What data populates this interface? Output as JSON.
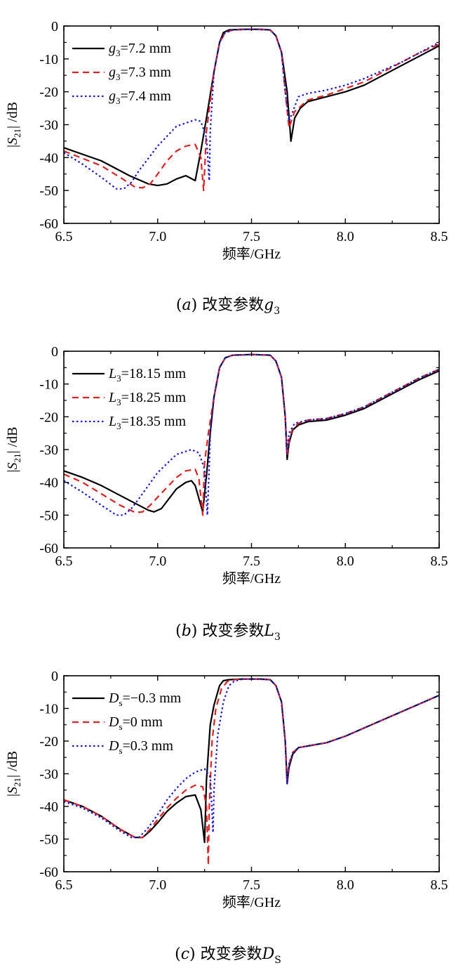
{
  "chart_data": [
    {
      "type": "line",
      "xlabel": "频率/GHz",
      "ylabel": "|S21| /dB",
      "xlim": [
        6.5,
        8.5
      ],
      "ylim": [
        -60,
        0
      ],
      "xticks": [
        "6.5",
        "7.0",
        "7.5",
        "8.0",
        "8.5"
      ],
      "yticks": [
        "0",
        "-10",
        "-20",
        "-30",
        "-40",
        "-50",
        "-60"
      ],
      "legend_position": "top-left",
      "caption": "(a) 改变参数g3",
      "series": [
        {
          "name": "g3=7.2 mm",
          "color": "#000000",
          "dash": "solid",
          "x": [
            6.5,
            6.7,
            6.85,
            6.95,
            7.0,
            7.05,
            7.1,
            7.15,
            7.2,
            7.23,
            7.26,
            7.3,
            7.33,
            7.35,
            7.38,
            7.45,
            7.55,
            7.6,
            7.63,
            7.66,
            7.69,
            7.71,
            7.73,
            7.76,
            7.8,
            7.9,
            8.0,
            8.1,
            8.2,
            8.3,
            8.4,
            8.5
          ],
          "y": [
            -37,
            -41,
            -45.5,
            -48,
            -48.5,
            -48,
            -46.5,
            -45.5,
            -47,
            -38,
            -28,
            -14,
            -5,
            -2,
            -1.2,
            -1,
            -1,
            -1.2,
            -3,
            -8,
            -20,
            -35,
            -28,
            -25,
            -23,
            -21.5,
            -20,
            -18,
            -15,
            -12,
            -9,
            -6
          ]
        },
        {
          "name": "g3=7.3 mm",
          "color": "#e02020",
          "dash": "dash",
          "x": [
            6.5,
            6.7,
            6.8,
            6.88,
            6.92,
            6.96,
            7.0,
            7.05,
            7.1,
            7.15,
            7.2,
            7.23,
            7.245,
            7.26,
            7.3,
            7.33,
            7.36,
            7.4,
            7.5,
            7.6,
            7.63,
            7.66,
            7.68,
            7.7,
            7.73,
            7.8,
            7.9,
            8.0,
            8.1,
            8.2,
            8.3,
            8.4,
            8.5
          ],
          "y": [
            -38,
            -42.5,
            -46,
            -49,
            -49.2,
            -48,
            -45,
            -41,
            -38,
            -36.5,
            -36,
            -40,
            -50,
            -32,
            -14,
            -5,
            -2,
            -1.2,
            -1,
            -1.2,
            -3,
            -8,
            -20,
            -31,
            -26,
            -22.5,
            -21,
            -19,
            -17,
            -14,
            -11,
            -8,
            -5.5
          ]
        },
        {
          "name": "g3=7.4 mm",
          "color": "#1a1ad6",
          "dash": "dot",
          "x": [
            6.5,
            6.6,
            6.7,
            6.78,
            6.82,
            6.86,
            6.9,
            7.0,
            7.1,
            7.2,
            7.23,
            7.26,
            7.275,
            7.28,
            7.3,
            7.33,
            7.36,
            7.4,
            7.5,
            7.6,
            7.63,
            7.66,
            7.68,
            7.7,
            7.75,
            7.8,
            7.9,
            8.0,
            8.1,
            8.2,
            8.3,
            8.4,
            8.5
          ],
          "y": [
            -38.5,
            -42,
            -46,
            -49.5,
            -49.5,
            -47.5,
            -44,
            -36.5,
            -30.5,
            -28.5,
            -29,
            -34,
            -47,
            -32,
            -14,
            -5,
            -2,
            -1.2,
            -1,
            -1.2,
            -3,
            -8,
            -20,
            -29,
            -21.5,
            -20.5,
            -19.5,
            -18,
            -16,
            -13.5,
            -11,
            -8,
            -5
          ]
        }
      ]
    },
    {
      "type": "line",
      "xlabel": "频率/GHz",
      "ylabel": "|S21| /dB",
      "xlim": [
        6.5,
        8.5
      ],
      "ylim": [
        -60,
        0
      ],
      "xticks": [
        "6.5",
        "7.0",
        "7.5",
        "8.0",
        "8.5"
      ],
      "yticks": [
        "0",
        "-10",
        "-20",
        "-30",
        "-40",
        "-50",
        "-60"
      ],
      "legend_position": "top-left",
      "caption": "(b) 改变参数L3",
      "series": [
        {
          "name": "L3=18.15 mm",
          "color": "#000000",
          "dash": "solid",
          "x": [
            6.5,
            6.6,
            6.7,
            6.8,
            6.9,
            6.95,
            6.98,
            7.02,
            7.1,
            7.15,
            7.18,
            7.2,
            7.22,
            7.24,
            7.26,
            7.28,
            7.3,
            7.33,
            7.36,
            7.4,
            7.5,
            7.6,
            7.63,
            7.66,
            7.68,
            7.69,
            7.7,
            7.72,
            7.75,
            7.8,
            7.9,
            8.0,
            8.1,
            8.2,
            8.3,
            8.4,
            8.5
          ],
          "y": [
            -36.5,
            -38.5,
            -41,
            -44,
            -47,
            -48.5,
            -49,
            -48,
            -42,
            -40,
            -39.5,
            -41,
            -45,
            -49,
            -38,
            -25,
            -14,
            -5,
            -2,
            -1.2,
            -1,
            -1.2,
            -3,
            -8,
            -20,
            -33,
            -28,
            -24,
            -22.5,
            -21.5,
            -21,
            -19.5,
            -17.5,
            -14.5,
            -11.5,
            -8.5,
            -6
          ]
        },
        {
          "name": "L3=18.25 mm",
          "color": "#e02020",
          "dash": "dash",
          "x": [
            6.5,
            6.6,
            6.7,
            6.8,
            6.88,
            6.92,
            6.96,
            7.0,
            7.1,
            7.15,
            7.2,
            7.22,
            7.24,
            7.25,
            7.27,
            7.3,
            7.33,
            7.36,
            7.4,
            7.5,
            7.6,
            7.63,
            7.66,
            7.68,
            7.69,
            7.7,
            7.72,
            7.75,
            7.8,
            7.9,
            8.0,
            8.1,
            8.2,
            8.3,
            8.4,
            8.5
          ],
          "y": [
            -37.5,
            -40,
            -43.5,
            -47,
            -49.2,
            -49,
            -47,
            -44.5,
            -38.5,
            -36.5,
            -36,
            -39,
            -50,
            -34,
            -25,
            -14,
            -5,
            -2,
            -1.2,
            -1,
            -1.2,
            -3,
            -8,
            -20,
            -32,
            -27,
            -23.5,
            -22,
            -21,
            -20.5,
            -19,
            -17,
            -14,
            -11,
            -8,
            -5.5
          ]
        },
        {
          "name": "L3=18.35 mm",
          "color": "#1a1ad6",
          "dash": "dot",
          "x": [
            6.5,
            6.6,
            6.7,
            6.78,
            6.82,
            6.86,
            6.9,
            7.0,
            7.1,
            7.18,
            7.22,
            7.25,
            7.265,
            7.275,
            7.28,
            7.3,
            7.33,
            7.36,
            7.4,
            7.5,
            7.6,
            7.63,
            7.66,
            7.68,
            7.69,
            7.7,
            7.73,
            7.8,
            7.9,
            8.0,
            8.1,
            8.2,
            8.3,
            8.4,
            8.5
          ],
          "y": [
            -39.5,
            -43,
            -47,
            -50,
            -50,
            -48,
            -45,
            -37,
            -31.5,
            -30,
            -31,
            -36,
            -50,
            -35,
            -25,
            -14,
            -5,
            -2,
            -1.2,
            -1,
            -1.2,
            -3,
            -8,
            -20,
            -31,
            -25,
            -22,
            -21,
            -20.5,
            -19,
            -17,
            -14,
            -11,
            -8,
            -5.5
          ]
        }
      ]
    },
    {
      "type": "line",
      "xlabel": "频率/GHz",
      "ylabel": "|S21| /dB",
      "xlim": [
        6.5,
        8.5
      ],
      "ylim": [
        -60,
        0
      ],
      "xticks": [
        "6.5",
        "7.0",
        "7.5",
        "8.0",
        "8.5"
      ],
      "yticks": [
        "0",
        "-10",
        "-20",
        "-30",
        "-40",
        "-50",
        "-60"
      ],
      "legend_position": "top-left",
      "caption": "(c) 改变参数DS",
      "series": [
        {
          "name": "Ds=−0.3 mm",
          "color": "#000000",
          "dash": "solid",
          "x": [
            6.5,
            6.6,
            6.7,
            6.8,
            6.88,
            6.92,
            6.96,
            7.0,
            7.05,
            7.1,
            7.15,
            7.2,
            7.23,
            7.25,
            7.26,
            7.28,
            7.3,
            7.33,
            7.35,
            7.38,
            7.45,
            7.55,
            7.6,
            7.63,
            7.66,
            7.68,
            7.69,
            7.7,
            7.72,
            7.75,
            7.8,
            7.9,
            8.0,
            8.1,
            8.2,
            8.3,
            8.4,
            8.5
          ],
          "y": [
            -38,
            -40,
            -43,
            -47,
            -49.5,
            -49.5,
            -47.5,
            -45,
            -41.5,
            -39,
            -37,
            -36.5,
            -41,
            -51,
            -32,
            -15,
            -9,
            -3,
            -1.5,
            -1.2,
            -1,
            -1,
            -1.2,
            -3,
            -8,
            -20,
            -33,
            -28,
            -24,
            -22,
            -21.5,
            -20.5,
            -18.5,
            -16,
            -13.5,
            -11,
            -8.5,
            -6
          ]
        },
        {
          "name": "Ds=0 mm",
          "color": "#e02020",
          "dash": "dash",
          "x": [
            6.5,
            6.6,
            6.7,
            6.8,
            6.88,
            6.92,
            6.96,
            7.0,
            7.05,
            7.1,
            7.15,
            7.2,
            7.24,
            7.26,
            7.27,
            7.275,
            7.29,
            7.31,
            7.34,
            7.37,
            7.42,
            7.5,
            7.6,
            7.63,
            7.66,
            7.68,
            7.69,
            7.7,
            7.72,
            7.75,
            7.8,
            7.9,
            8.0,
            8.1,
            8.2,
            8.3,
            8.4,
            8.5
          ],
          "y": [
            -38,
            -40,
            -43,
            -47,
            -49.5,
            -49.5,
            -47,
            -44,
            -40.5,
            -37.5,
            -35,
            -33.5,
            -34,
            -40,
            -58,
            -40,
            -20,
            -10,
            -4,
            -1.8,
            -1.1,
            -1,
            -1.2,
            -3,
            -8,
            -20,
            -32,
            -27,
            -23.5,
            -22,
            -21.5,
            -20.5,
            -18.5,
            -16,
            -13.5,
            -11,
            -8.5,
            -6
          ]
        },
        {
          "name": "Ds=0.3 mm",
          "color": "#1a1ad6",
          "dash": "dot",
          "x": [
            6.5,
            6.6,
            6.7,
            6.8,
            6.86,
            6.9,
            6.95,
            7.0,
            7.05,
            7.1,
            7.15,
            7.2,
            7.25,
            7.28,
            7.295,
            7.3,
            7.32,
            7.35,
            7.38,
            7.41,
            7.45,
            7.5,
            7.6,
            7.63,
            7.66,
            7.68,
            7.69,
            7.7,
            7.72,
            7.75,
            7.8,
            7.9,
            8.0,
            8.1,
            8.2,
            8.3,
            8.4,
            8.5
          ],
          "y": [
            -38.5,
            -40.5,
            -43.5,
            -47.5,
            -49.5,
            -49.5,
            -46.5,
            -42.5,
            -38,
            -34.5,
            -31.5,
            -29.5,
            -28.5,
            -31,
            -48,
            -35,
            -18,
            -8,
            -3,
            -1.6,
            -1.1,
            -1,
            -1.2,
            -3,
            -8,
            -20,
            -33,
            -27,
            -23.5,
            -22,
            -21.5,
            -20.5,
            -18.5,
            -16,
            -13.5,
            -11,
            -8.5,
            -6
          ]
        }
      ]
    }
  ]
}
